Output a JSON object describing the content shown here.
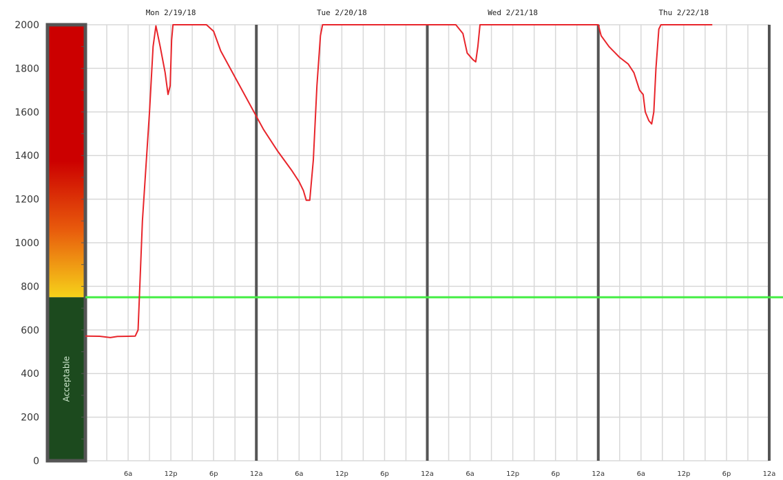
{
  "chart_data": {
    "type": "line",
    "title": "",
    "xlabel": "",
    "ylabel": "",
    "ylim": [
      0,
      2000
    ],
    "xlim_hours": [
      0,
      96
    ],
    "y_ticks": [
      "0",
      "200",
      "400",
      "600",
      "800",
      "1000",
      "1200",
      "1400",
      "1600",
      "1800",
      "2000"
    ],
    "x_ticks": [
      {
        "hour": 6,
        "label": "6a"
      },
      {
        "hour": 12,
        "label": "12p"
      },
      {
        "hour": 18,
        "label": "6p"
      },
      {
        "hour": 24,
        "label": "12a"
      },
      {
        "hour": 30,
        "label": "6a"
      },
      {
        "hour": 36,
        "label": "12p"
      },
      {
        "hour": 42,
        "label": "6p"
      },
      {
        "hour": 48,
        "label": "12a"
      },
      {
        "hour": 54,
        "label": "6a"
      },
      {
        "hour": 60,
        "label": "12p"
      },
      {
        "hour": 66,
        "label": "6p"
      },
      {
        "hour": 72,
        "label": "12a"
      },
      {
        "hour": 78,
        "label": "6a"
      },
      {
        "hour": 84,
        "label": "12p"
      },
      {
        "hour": 90,
        "label": "6p"
      },
      {
        "hour": 96,
        "label": "12a"
      }
    ],
    "day_labels": [
      {
        "hour": 12,
        "label": "Mon 2/19/18"
      },
      {
        "hour": 36,
        "label": "Tue 2/20/18"
      },
      {
        "hour": 60,
        "label": "Wed 2/21/18"
      },
      {
        "hour": 84,
        "label": "Thu 2/22/18"
      }
    ],
    "day_dividers_hours": [
      24,
      48,
      72,
      96
    ],
    "threshold": 750,
    "band_label": "Acceptable",
    "series": [
      {
        "color": "#e8242a",
        "points": [
          [
            0,
            572
          ],
          [
            2,
            571
          ],
          [
            3.5,
            565
          ],
          [
            4.5,
            570
          ],
          [
            6,
            571
          ],
          [
            7,
            572
          ],
          [
            7.4,
            600
          ],
          [
            8,
            1100
          ],
          [
            9,
            1600
          ],
          [
            9.5,
            1900
          ],
          [
            9.9,
            1995
          ],
          [
            10.5,
            1900
          ],
          [
            11.2,
            1780
          ],
          [
            11.6,
            1680
          ],
          [
            11.9,
            1720
          ],
          [
            12.1,
            1930
          ],
          [
            12.3,
            2000
          ],
          [
            17,
            2000
          ],
          [
            18,
            1970
          ],
          [
            19,
            1880
          ],
          [
            21,
            1760
          ],
          [
            23,
            1640
          ],
          [
            25,
            1520
          ],
          [
            27,
            1420
          ],
          [
            29,
            1330
          ],
          [
            30,
            1280
          ],
          [
            30.6,
            1240
          ],
          [
            31,
            1195
          ],
          [
            31.5,
            1195
          ],
          [
            32,
            1380
          ],
          [
            32.5,
            1720
          ],
          [
            33,
            1950
          ],
          [
            33.3,
            2000
          ],
          [
            52,
            2000
          ],
          [
            53,
            1960
          ],
          [
            53.6,
            1870
          ],
          [
            54.4,
            1840
          ],
          [
            54.8,
            1830
          ],
          [
            55.1,
            1900
          ],
          [
            55.4,
            2000
          ],
          [
            72,
            2000
          ],
          [
            72.4,
            1950
          ],
          [
            73.5,
            1900
          ],
          [
            75,
            1850
          ],
          [
            76.2,
            1820
          ],
          [
            77,
            1780
          ],
          [
            77.8,
            1700
          ],
          [
            78.3,
            1680
          ],
          [
            78.6,
            1600
          ],
          [
            79.1,
            1560
          ],
          [
            79.5,
            1545
          ],
          [
            79.8,
            1600
          ],
          [
            80.1,
            1800
          ],
          [
            80.5,
            1980
          ],
          [
            80.8,
            2000
          ],
          [
            88,
            2000
          ]
        ]
      }
    ],
    "colors": {
      "line": "#e8242a",
      "threshold": "#44ee44",
      "band_red": "#cc0000",
      "band_orange": "#e85a0c",
      "band_yellow": "#f6d21a",
      "band_green": "#1c4a1e",
      "band_border": "#555555",
      "grid": "#d8d8d8",
      "day_divider": "#555555"
    }
  }
}
